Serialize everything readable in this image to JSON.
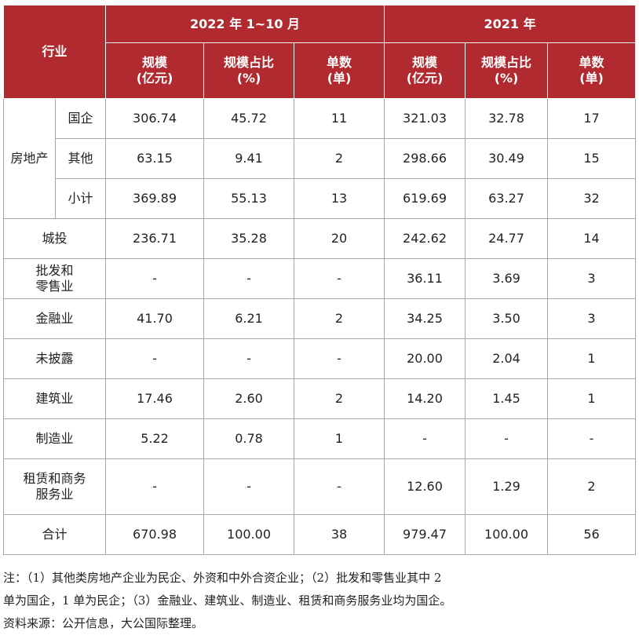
{
  "header": {
    "industry": "行业",
    "group_2022": "2022 年 1~10 月",
    "group_2021": "2021 年",
    "col_scale_a": "规模",
    "col_scale_b": "(亿元)",
    "col_share_a": "规模占比",
    "col_share_b": "(%)",
    "col_count_a": "单数",
    "col_count_b": "(单)"
  },
  "realestate": {
    "group_label": "房地产",
    "rows": [
      {
        "sub": "国企",
        "v2022_scale": "306.74",
        "v2022_share": "45.72",
        "v2022_count": "11",
        "v2021_scale": "321.03",
        "v2021_share": "32.78",
        "v2021_count": "17"
      },
      {
        "sub": "其他",
        "v2022_scale": "63.15",
        "v2022_share": "9.41",
        "v2022_count": "2",
        "v2021_scale": "298.66",
        "v2021_share": "30.49",
        "v2021_count": "15"
      },
      {
        "sub": "小计",
        "v2022_scale": "369.89",
        "v2022_share": "55.13",
        "v2022_count": "13",
        "v2021_scale": "619.69",
        "v2021_share": "63.27",
        "v2021_count": "32"
      }
    ]
  },
  "rows": [
    {
      "label_a": "城投",
      "label_b": "",
      "v2022_scale": "236.71",
      "v2022_share": "35.28",
      "v2022_count": "20",
      "v2021_scale": "242.62",
      "v2021_share": "24.77",
      "v2021_count": "14"
    },
    {
      "label_a": "批发和",
      "label_b": "零售业",
      "v2022_scale": "-",
      "v2022_share": "-",
      "v2022_count": "-",
      "v2021_scale": "36.11",
      "v2021_share": "3.69",
      "v2021_count": "3"
    },
    {
      "label_a": "金融业",
      "label_b": "",
      "v2022_scale": "41.70",
      "v2022_share": "6.21",
      "v2022_count": "2",
      "v2021_scale": "34.25",
      "v2021_share": "3.50",
      "v2021_count": "3"
    },
    {
      "label_a": "未披露",
      "label_b": "",
      "v2022_scale": "-",
      "v2022_share": "-",
      "v2022_count": "-",
      "v2021_scale": "20.00",
      "v2021_share": "2.04",
      "v2021_count": "1"
    },
    {
      "label_a": "建筑业",
      "label_b": "",
      "v2022_scale": "17.46",
      "v2022_share": "2.60",
      "v2022_count": "2",
      "v2021_scale": "14.20",
      "v2021_share": "1.45",
      "v2021_count": "1"
    },
    {
      "label_a": "制造业",
      "label_b": "",
      "v2022_scale": "5.22",
      "v2022_share": "0.78",
      "v2022_count": "1",
      "v2021_scale": "-",
      "v2021_share": "-",
      "v2021_count": "-"
    },
    {
      "label_a": "租赁和商务",
      "label_b": "服务业",
      "v2022_scale": "-",
      "v2022_share": "-",
      "v2022_count": "-",
      "v2021_scale": "12.60",
      "v2021_share": "1.29",
      "v2021_count": "2"
    }
  ],
  "total": {
    "label": "合计",
    "v2022_scale": "670.98",
    "v2022_share": "100.00",
    "v2022_count": "38",
    "v2021_scale": "979.47",
    "v2021_share": "100.00",
    "v2021_count": "56"
  },
  "notes": {
    "line1": "注：（1）其他类房地产企业为民企、外资和中外合资企业；（2）批发和零售业其中 2",
    "line2": "单为国企，1 单为民企；（3）金融业、建筑业、制造业、租赁和商务服务业均为国企。",
    "source": "资料来源：公开信息，大公国际整理。"
  },
  "colors": {
    "header_bg": "#b02a30",
    "header_text": "#ffffff",
    "border": "#a8a8a8"
  }
}
